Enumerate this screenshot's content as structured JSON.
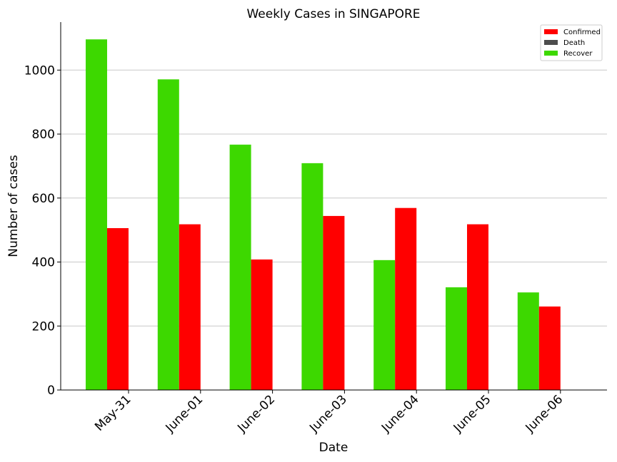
{
  "chart_data": {
    "type": "bar",
    "title": "Weekly Cases in SINGAPORE",
    "xlabel": "Date",
    "ylabel": "Number of cases",
    "categories": [
      "May-31",
      "June-01",
      "June-02",
      "June-03",
      "June-04",
      "June-05",
      "June-06"
    ],
    "series": [
      {
        "name": "Recover",
        "color": "#3dd800",
        "values": [
          1096,
          971,
          767,
          709,
          406,
          321,
          305
        ]
      },
      {
        "name": "Confirmed",
        "color": "#ff0000",
        "values": [
          506,
          518,
          408,
          544,
          569,
          518,
          261
        ]
      },
      {
        "name": "Death",
        "color": "#4d4d4d",
        "values": [
          0,
          0,
          0,
          0,
          0,
          0,
          0
        ]
      }
    ],
    "legend": [
      "Confirmed",
      "Death",
      "Recover"
    ],
    "legend_position": "top-right",
    "ylim": [
      0,
      1150
    ],
    "yticks": [
      0,
      200,
      400,
      600,
      800,
      1000
    ],
    "grid": "horizontal"
  }
}
